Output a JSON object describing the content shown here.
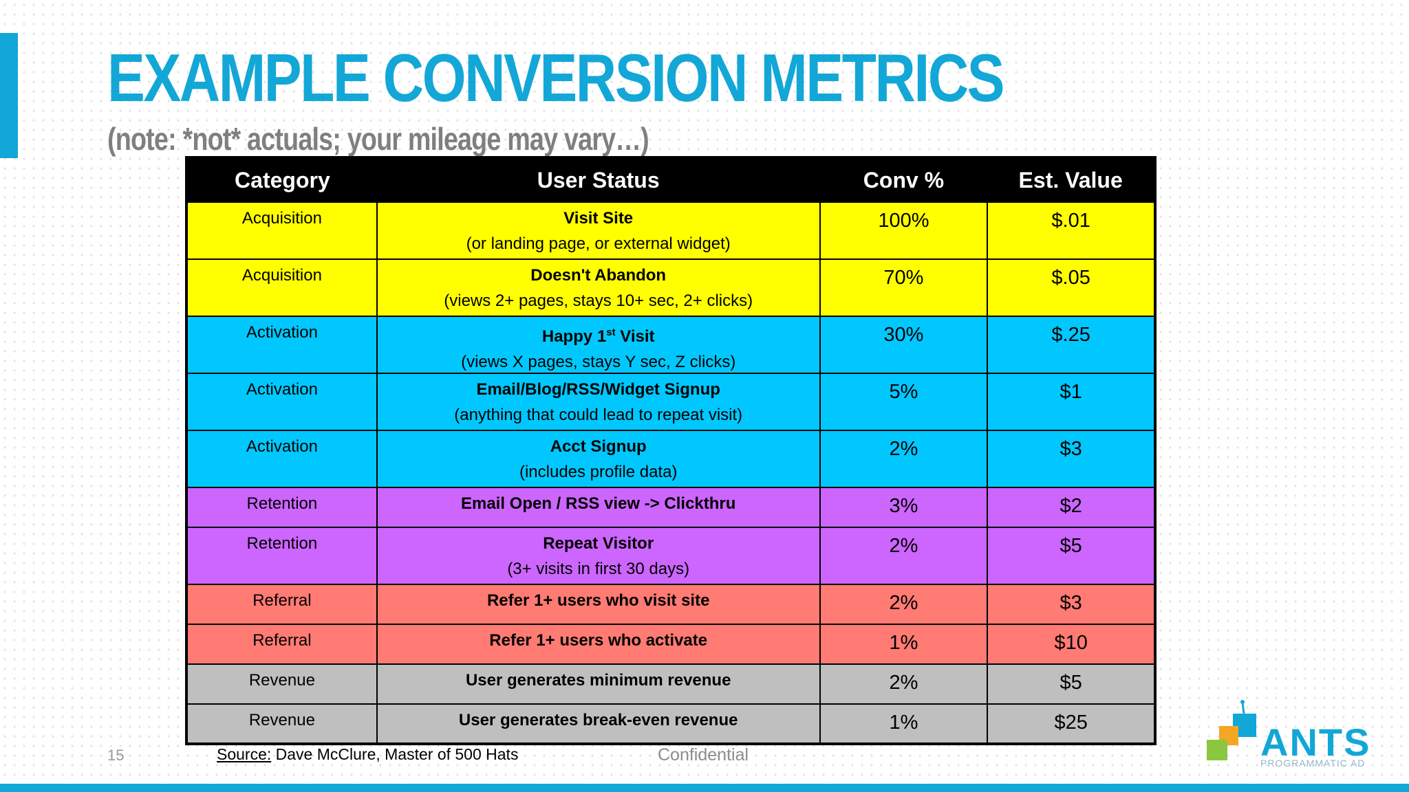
{
  "slide": {
    "title": "EXAMPLE CONVERSION METRICS",
    "subtitle": "(note: *not* actuals; your mileage may vary…)",
    "page_number": "15",
    "source_label": "Source:",
    "source_text": " Dave McClure, Master of 500 Hats",
    "confidential": "Confidential"
  },
  "colors": {
    "accent": "#12a7d6",
    "acquisition": "#ffff00",
    "activation": "#00c8ff",
    "retention": "#cc66ff",
    "referral": "#ff7b73",
    "revenue": "#bfbfbf"
  },
  "logo": {
    "name": "ANTS",
    "tagline": "PROGRAMMATIC AD",
    "icon": "colored-squares-logo-icon"
  },
  "table": {
    "headers": {
      "category": "Category",
      "status": "User Status",
      "conv": "Conv %",
      "value": "Est. Value"
    },
    "rows": [
      {
        "category": "Acquisition",
        "status": "Visit Site",
        "detail": "(or landing page, or external widget)",
        "conv": "100%",
        "value": "$.01"
      },
      {
        "category": "Acquisition",
        "status": "Doesn't Abandon",
        "detail": "(views 2+ pages, stays 10+ sec, 2+ clicks)",
        "conv": "70%",
        "value": "$.05"
      },
      {
        "category": "Activation",
        "status_pre": "Happy 1",
        "status_sup": "st",
        "status_post": " Visit",
        "detail": "(views X pages, stays Y sec, Z clicks)",
        "conv": "30%",
        "value": "$.25"
      },
      {
        "category": "Activation",
        "status": "Email/Blog/RSS/Widget Signup",
        "detail": "(anything that could lead to repeat visit)",
        "conv": "5%",
        "value": "$1"
      },
      {
        "category": "Activation",
        "status": "Acct Signup",
        "detail": "(includes profile data)",
        "conv": "2%",
        "value": "$3"
      },
      {
        "category": "Retention",
        "status": "Email Open / RSS view -> Clickthru",
        "conv": "3%",
        "value": "$2"
      },
      {
        "category": "Retention",
        "status": "Repeat Visitor",
        "detail": "(3+ visits in first 30 days)",
        "conv": "2%",
        "value": "$5"
      },
      {
        "category": "Referral",
        "status": "Refer 1+ users who visit site",
        "conv": "2%",
        "value": "$3"
      },
      {
        "category": "Referral",
        "status": "Refer 1+ users who activate",
        "conv": "1%",
        "value": "$10"
      },
      {
        "category": "Revenue",
        "status": "User generates minimum revenue",
        "conv": "2%",
        "value": "$5"
      },
      {
        "category": "Revenue",
        "status": "User generates break-even revenue",
        "conv": "1%",
        "value": "$25"
      }
    ]
  }
}
